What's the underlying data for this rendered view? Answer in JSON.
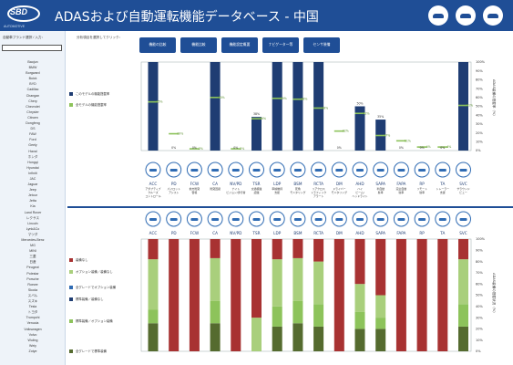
{
  "header": {
    "logo_text": "SBD",
    "logo_sub": "AUTOMOTIVE",
    "title": "ADASおよび自動運転機能データベース - 中国",
    "icons": [
      "car-icon",
      "car-side-icon",
      "car-front-icon"
    ]
  },
  "sidebar": {
    "filter_label": "自動車ブランド選択 / 入力：",
    "search_value": "",
    "brands": [
      "Baojun",
      "BMW",
      "Borgward",
      "Buick",
      "BYD",
      "Cadillac",
      "Changan",
      "Chery",
      "Chevrolet",
      "Chrysler",
      "Citroen",
      "Dongfeng",
      "DS",
      "FAW",
      "Ford",
      "Geely",
      "Haval",
      "ホンダ",
      "Hongqi",
      "Hyundai",
      "Infiniti",
      "JAC",
      "Jaguar",
      "Jeep",
      "Jetour",
      "Jetta",
      "Kia",
      "Land Rover",
      "レクサス",
      "Lincoln",
      "Lynk&Co",
      "マツダ",
      "Mercedes-Benz",
      "MG",
      "MINI",
      "三菱",
      "日産",
      "Peugeot",
      "Polestar",
      "Porsche",
      "Roewe",
      "Skoda",
      "スバル",
      "スズキ",
      "Tesla",
      "トヨタ",
      "Trumpchi",
      "Venucia",
      "Volkswagen",
      "Volvo",
      "Wuling",
      "Weiy",
      "Zotye"
    ]
  },
  "main": {
    "select_label": "分析項目を選択してクリック：",
    "tabs": [
      "機能の比較",
      "機能比較",
      "機能設定概要",
      "ナビゲーター等",
      "センサ装備"
    ]
  },
  "icon_colors": {
    "navy": "#1f3d73",
    "green": "#8dc35b",
    "red": "#a83232",
    "lightgreen": "#a9cf7c",
    "darkgreen": "#556b2f",
    "blue": "#2f6bb3",
    "accent": "#1f4e96"
  },
  "chart_data": [
    {
      "type": "bar",
      "categories": [
        "ACC",
        "PD",
        "FCW",
        "CA",
        "NV/PD",
        "TSR",
        "LDP",
        "BSM",
        "RCTA",
        "DM",
        "AHD",
        "SAPA",
        "FAPA",
        "RP",
        "TA",
        "SVC"
      ],
      "category_descriptions": [
        "アダプティブ クルーズ コントロール",
        "パイロット アシスト",
        "前方衝突 警報",
        "衝突回避",
        "ナイト ビジョン/歩行者",
        "交通標識 認識",
        "車線維持 支援",
        "死角 モニタリング",
        "リアクロス トラフィック アラート",
        "ドライバー モニタリング",
        "ハイ ビーム/ ヘッドライト",
        "半自動 駐車",
        "完全自動 駐車",
        "リモート 駐車",
        "トレーラー 支援",
        "サラウンド ビュー"
      ],
      "series": [
        {
          "name": "このモデルの機能搭載率",
          "values": [
            100,
            0,
            0,
            100,
            0,
            38,
            100,
            100,
            100,
            0,
            50,
            35,
            0,
            0,
            0,
            100
          ]
        },
        {
          "name": "全モデルの機能搭載率",
          "values": [
            55,
            19,
            2,
            60,
            2,
            36,
            59,
            58,
            48,
            22,
            42,
            17,
            11,
            4,
            4,
            51
          ]
        }
      ],
      "green_labels": [
        "55%",
        "19%",
        "2%",
        "60%",
        "2%",
        "36%",
        "59%",
        "58%",
        "48%",
        "22%",
        "42%",
        "17%",
        "11%",
        "4%",
        "4%",
        "51%"
      ],
      "navy_labels": [
        "",
        "0%",
        "0%",
        "",
        "0%",
        "38%",
        "",
        "",
        "",
        "0%",
        "50%",
        "35%",
        "0%",
        "0%",
        "0%",
        ""
      ],
      "ylabel": "ADAS装備の搭載率（%）",
      "yticks": [
        "0%",
        "10%",
        "20%",
        "30%",
        "40%",
        "50%",
        "60%",
        "70%",
        "80%",
        "90%",
        "100%"
      ],
      "ylim": [
        0,
        100
      ]
    },
    {
      "type": "bar",
      "stacked": true,
      "categories": [
        "ACC",
        "PD",
        "FCW",
        "CA",
        "NV/PD",
        "TSR",
        "LDP",
        "BSM",
        "RCTA",
        "DM",
        "AHD",
        "SAPA",
        "FAPA",
        "RP",
        "TA",
        "SVC"
      ],
      "series": [
        {
          "name": "全グレードで標準装備",
          "values": [
            25,
            0,
            0,
            25,
            0,
            0,
            22,
            25,
            22,
            0,
            20,
            20,
            0,
            0,
            0,
            22
          ]
        },
        {
          "name": "標準装備／オプション装備",
          "values": [
            12,
            0,
            0,
            20,
            0,
            0,
            18,
            20,
            20,
            0,
            15,
            10,
            0,
            0,
            0,
            20
          ]
        },
        {
          "name": "標準装備／装備なし",
          "values": [
            0,
            0,
            0,
            0,
            0,
            0,
            0,
            0,
            0,
            0,
            0,
            0,
            0,
            0,
            0,
            0
          ]
        },
        {
          "name": "全グレードでオプション装備",
          "values": [
            0,
            0,
            0,
            0,
            0,
            0,
            0,
            0,
            0,
            0,
            0,
            0,
            0,
            0,
            0,
            0
          ]
        },
        {
          "name": "オプション装備／装備なし",
          "values": [
            45,
            0,
            0,
            38,
            0,
            30,
            42,
            38,
            38,
            0,
            25,
            20,
            0,
            0,
            0,
            40
          ]
        },
        {
          "name": "装備なし",
          "values": [
            18,
            100,
            100,
            17,
            100,
            70,
            18,
            17,
            20,
            100,
            40,
            50,
            100,
            100,
            100,
            18
          ]
        }
      ],
      "legend_labels": [
        "装備なし",
        "オプション装備／装備なし",
        "全グレードでオプション装備",
        "標準装備／装備なし",
        "標準装備／オプション装備",
        "全グレードで標準装備"
      ],
      "ylabel": "ADAS装備の搭載状況（%）",
      "yticks": [
        "0%",
        "10%",
        "20%",
        "30%",
        "40%",
        "50%",
        "60%",
        "70%",
        "80%",
        "90%",
        "100%"
      ],
      "ylim": [
        0,
        100
      ]
    }
  ]
}
